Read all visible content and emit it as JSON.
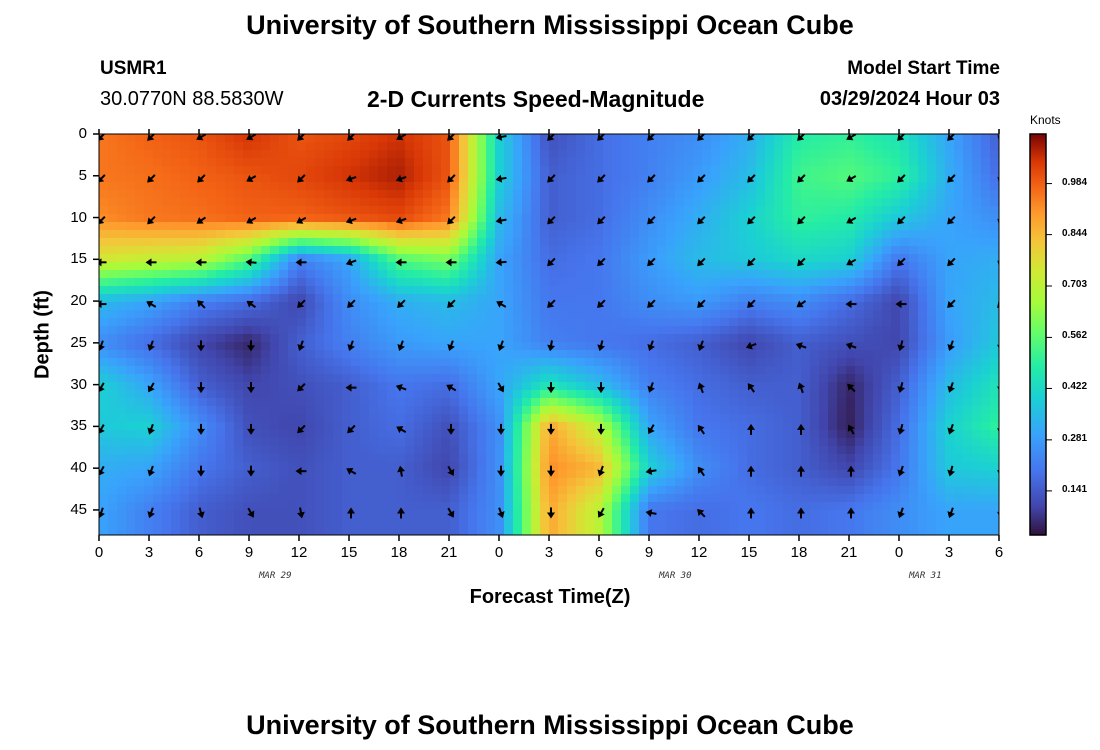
{
  "header": {
    "title": "University of Southern Mississippi Ocean Cube",
    "station": "USMR1",
    "latlon": "30.0770N  88.5830W",
    "subtitle": "2-D Currents Speed-Magnitude",
    "model_start_label": "Model Start Time",
    "model_start_value": "03/29/2024 Hour 03"
  },
  "footer": {
    "title": "University of Southern Mississippi Ocean Cube"
  },
  "chart_data": {
    "type": "heatmap",
    "xlabel": "Forecast Time(Z)",
    "ylabel": "Depth (ft)",
    "x_tick_labels": [
      "0",
      "3",
      "6",
      "9",
      "12",
      "15",
      "18",
      "21",
      "0",
      "3",
      "6",
      "9",
      "12",
      "15",
      "18",
      "21",
      "0",
      "3",
      "6"
    ],
    "x_date_labels": [
      {
        "label": "MAR 29",
        "after_tick": 3
      },
      {
        "label": "MAR 30",
        "after_tick": 11
      },
      {
        "label": "MAR 31",
        "after_tick": 16
      }
    ],
    "y_ticks": [
      0,
      5,
      10,
      15,
      20,
      25,
      30,
      35,
      40,
      45
    ],
    "ylim": [
      0,
      48
    ],
    "xlim_hours": [
      0,
      54
    ],
    "colorbar": {
      "units": "Knots",
      "ticks": [
        "0.984",
        "0.844",
        "0.703",
        "0.562",
        "0.422",
        "0.281",
        "0.141"
      ],
      "tick_values": [
        0.984,
        0.844,
        0.703,
        0.562,
        0.422,
        0.281,
        0.141
      ],
      "range": [
        0.02,
        1.12
      ]
    },
    "grid_depths": [
      0,
      5,
      10,
      15,
      20,
      25,
      30,
      35,
      40,
      45
    ],
    "grid_hours": [
      0,
      3,
      6,
      9,
      12,
      15,
      18,
      21,
      24,
      27,
      30,
      33,
      36,
      39,
      42,
      45,
      48,
      51,
      54
    ],
    "speed": [
      [
        0.95,
        0.98,
        1.0,
        1.05,
        1.0,
        1.02,
        1.05,
        1.0,
        0.4,
        0.12,
        0.18,
        0.22,
        0.25,
        0.32,
        0.48,
        0.5,
        0.45,
        0.3,
        0.15
      ],
      [
        0.95,
        0.96,
        0.98,
        1.0,
        1.02,
        1.05,
        1.08,
        1.0,
        0.4,
        0.15,
        0.18,
        0.22,
        0.28,
        0.35,
        0.52,
        0.55,
        0.5,
        0.32,
        0.18
      ],
      [
        0.92,
        0.95,
        0.96,
        0.98,
        0.98,
        1.0,
        1.02,
        0.95,
        0.35,
        0.15,
        0.18,
        0.25,
        0.32,
        0.4,
        0.5,
        0.48,
        0.38,
        0.3,
        0.25
      ],
      [
        0.75,
        0.72,
        0.7,
        0.55,
        0.22,
        0.3,
        0.55,
        0.6,
        0.3,
        0.18,
        0.2,
        0.28,
        0.35,
        0.38,
        0.42,
        0.4,
        0.2,
        0.3,
        0.32
      ],
      [
        0.35,
        0.3,
        0.22,
        0.18,
        0.1,
        0.25,
        0.32,
        0.35,
        0.3,
        0.2,
        0.2,
        0.25,
        0.28,
        0.22,
        0.25,
        0.18,
        0.1,
        0.3,
        0.35
      ],
      [
        0.25,
        0.18,
        0.1,
        0.05,
        0.15,
        0.22,
        0.28,
        0.3,
        0.3,
        0.22,
        0.2,
        0.18,
        0.15,
        0.1,
        0.15,
        0.12,
        0.1,
        0.28,
        0.38
      ],
      [
        0.4,
        0.3,
        0.15,
        0.1,
        0.12,
        0.15,
        0.2,
        0.18,
        0.3,
        0.45,
        0.35,
        0.22,
        0.18,
        0.15,
        0.15,
        0.05,
        0.15,
        0.35,
        0.45
      ],
      [
        0.38,
        0.4,
        0.25,
        0.12,
        0.1,
        0.15,
        0.18,
        0.12,
        0.25,
        0.88,
        0.7,
        0.3,
        0.2,
        0.18,
        0.15,
        0.04,
        0.18,
        0.4,
        0.5
      ],
      [
        0.32,
        0.3,
        0.2,
        0.15,
        0.12,
        0.15,
        0.15,
        0.1,
        0.25,
        0.92,
        0.85,
        0.4,
        0.25,
        0.18,
        0.15,
        0.1,
        0.2,
        0.38,
        0.4
      ],
      [
        0.3,
        0.22,
        0.15,
        0.12,
        0.12,
        0.15,
        0.15,
        0.15,
        0.25,
        0.88,
        0.7,
        0.2,
        0.18,
        0.2,
        0.18,
        0.2,
        0.25,
        0.3,
        0.3
      ]
    ],
    "direction_deg": [
      [
        225,
        225,
        240,
        240,
        225,
        225,
        240,
        225,
        260,
        225,
        225,
        225,
        225,
        225,
        225,
        240,
        225,
        225,
        200
      ],
      [
        225,
        225,
        225,
        240,
        225,
        250,
        250,
        225,
        260,
        225,
        225,
        225,
        225,
        225,
        225,
        240,
        225,
        225,
        200
      ],
      [
        225,
        225,
        235,
        240,
        240,
        250,
        250,
        225,
        260,
        225,
        225,
        225,
        225,
        225,
        225,
        240,
        225,
        225,
        200
      ],
      [
        270,
        270,
        270,
        275,
        270,
        250,
        270,
        270,
        265,
        225,
        225,
        225,
        225,
        225,
        225,
        240,
        225,
        225,
        200
      ],
      [
        270,
        300,
        315,
        305,
        225,
        225,
        225,
        225,
        300,
        225,
        225,
        225,
        225,
        225,
        235,
        270,
        270,
        225,
        225
      ],
      [
        200,
        200,
        180,
        180,
        200,
        200,
        200,
        200,
        200,
        190,
        195,
        200,
        200,
        250,
        290,
        290,
        195,
        200,
        190
      ],
      [
        210,
        210,
        180,
        180,
        225,
        270,
        290,
        300,
        150,
        180,
        180,
        200,
        340,
        325,
        340,
        315,
        195,
        200,
        190
      ],
      [
        210,
        200,
        180,
        180,
        225,
        225,
        300,
        180,
        180,
        180,
        180,
        210,
        325,
        0,
        0,
        330,
        195,
        200,
        190
      ],
      [
        210,
        200,
        180,
        180,
        270,
        300,
        350,
        150,
        180,
        180,
        200,
        260,
        325,
        0,
        0,
        0,
        200,
        195,
        190
      ],
      [
        200,
        200,
        165,
        150,
        170,
        0,
        0,
        150,
        160,
        180,
        210,
        280,
        315,
        0,
        0,
        0,
        200,
        200,
        190
      ]
    ]
  }
}
